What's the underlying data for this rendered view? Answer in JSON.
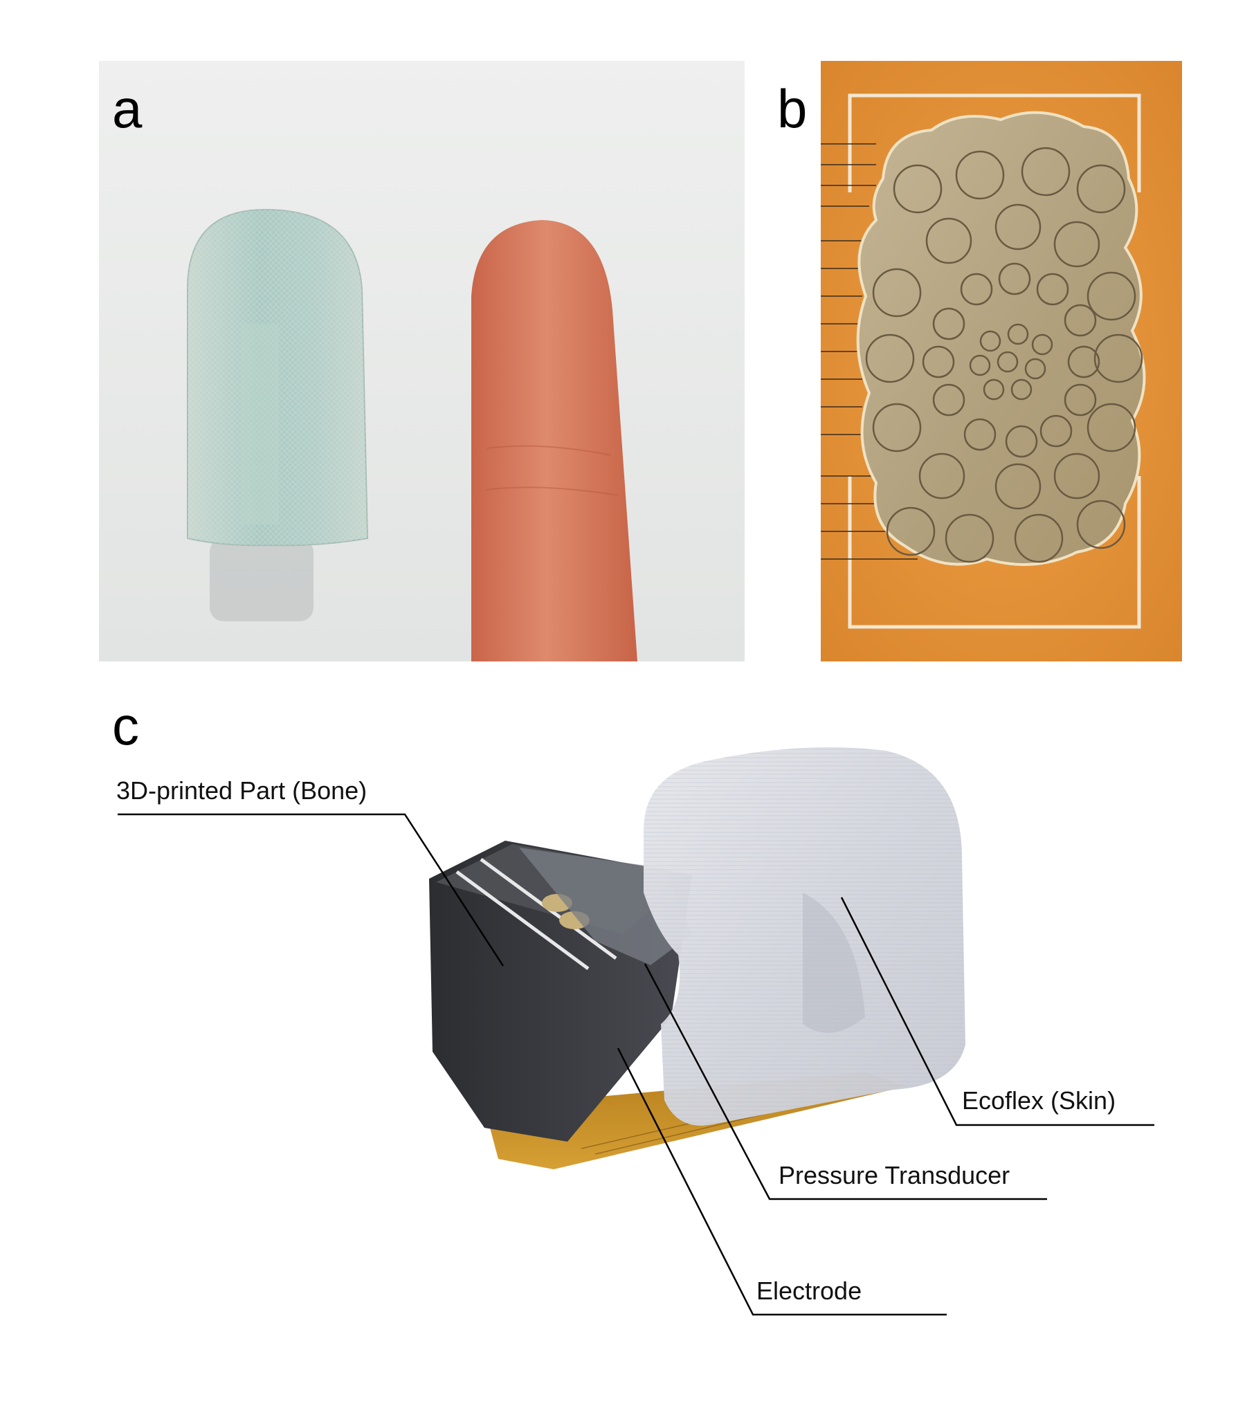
{
  "figure": {
    "panels": [
      {
        "letter": "a",
        "photo": "fingertip-prototype-beside-human-finger",
        "colors": {
          "background": "#e9ebea",
          "prototype": "#b7cec6",
          "finger": "#d8785a"
        }
      },
      {
        "letter": "b",
        "photo": "pressure-transducer-electrode-array",
        "colors": {
          "substrate": "#e39437",
          "gold_pad": "#b8a886",
          "outline": "#f4e7d2"
        }
      },
      {
        "letter": "c",
        "photo": "assembled-biomimetic-fingertip",
        "colors": {
          "skin": "#dcdde3",
          "bone": "#3a3b40",
          "flex_circuit": "#c98d1e"
        }
      }
    ],
    "callouts": {
      "bone": "3D-printed Part (Bone)",
      "skin": "Ecoflex (Skin)",
      "transducer": "Pressure Transducer",
      "electrode": "Electrode"
    }
  }
}
